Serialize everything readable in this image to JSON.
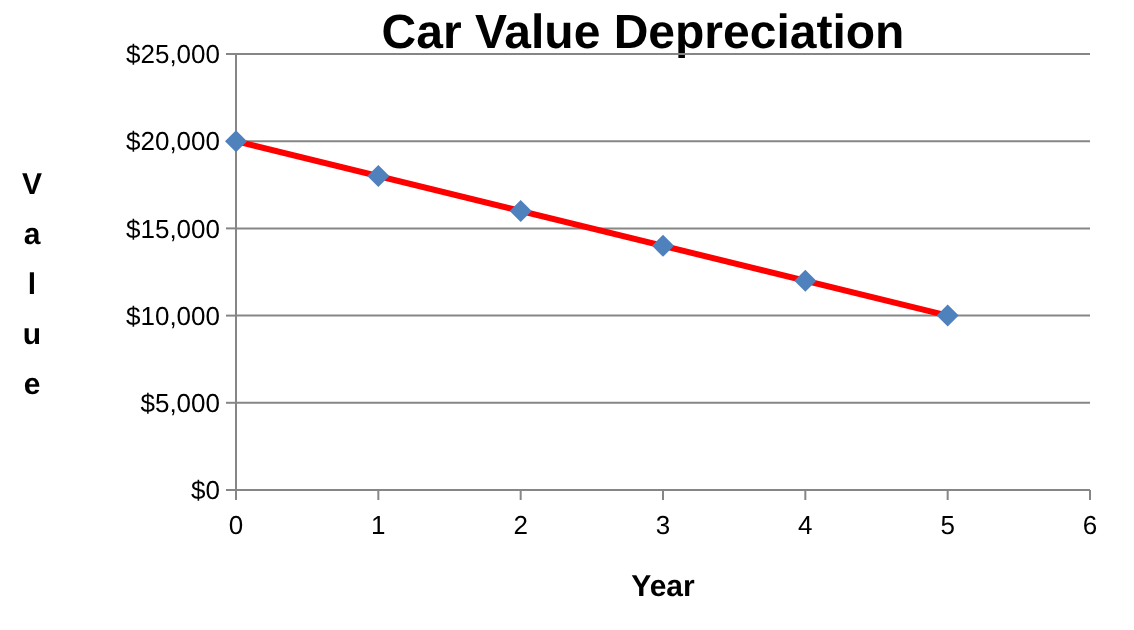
{
  "chart_data": {
    "type": "scatter",
    "title": "Car Value Depreciation",
    "xlabel": "Year",
    "ylabel": "Value",
    "xlim": [
      0,
      6
    ],
    "xticks": [
      0,
      1,
      2,
      3,
      4,
      5,
      6
    ],
    "ylim": [
      0,
      25000
    ],
    "yticks": [
      {
        "value": 0,
        "label": "$0"
      },
      {
        "value": 5000,
        "label": "$5,000"
      },
      {
        "value": 10000,
        "label": "$10,000"
      },
      {
        "value": 15000,
        "label": "$15,000"
      },
      {
        "value": 20000,
        "label": "$20,000"
      },
      {
        "value": 25000,
        "label": "$25,000"
      }
    ],
    "grid": "y",
    "series": [
      {
        "type": "line",
        "color": "#ff0000",
        "x": [
          0,
          5
        ],
        "values": [
          20000,
          10000
        ],
        "marker": "none"
      },
      {
        "color": "#4f81bd",
        "x": [
          0,
          1,
          2,
          3,
          4,
          5
        ],
        "values": [
          20000,
          18000,
          16000,
          14000,
          12000,
          10000
        ],
        "marker": "diamond"
      }
    ]
  }
}
